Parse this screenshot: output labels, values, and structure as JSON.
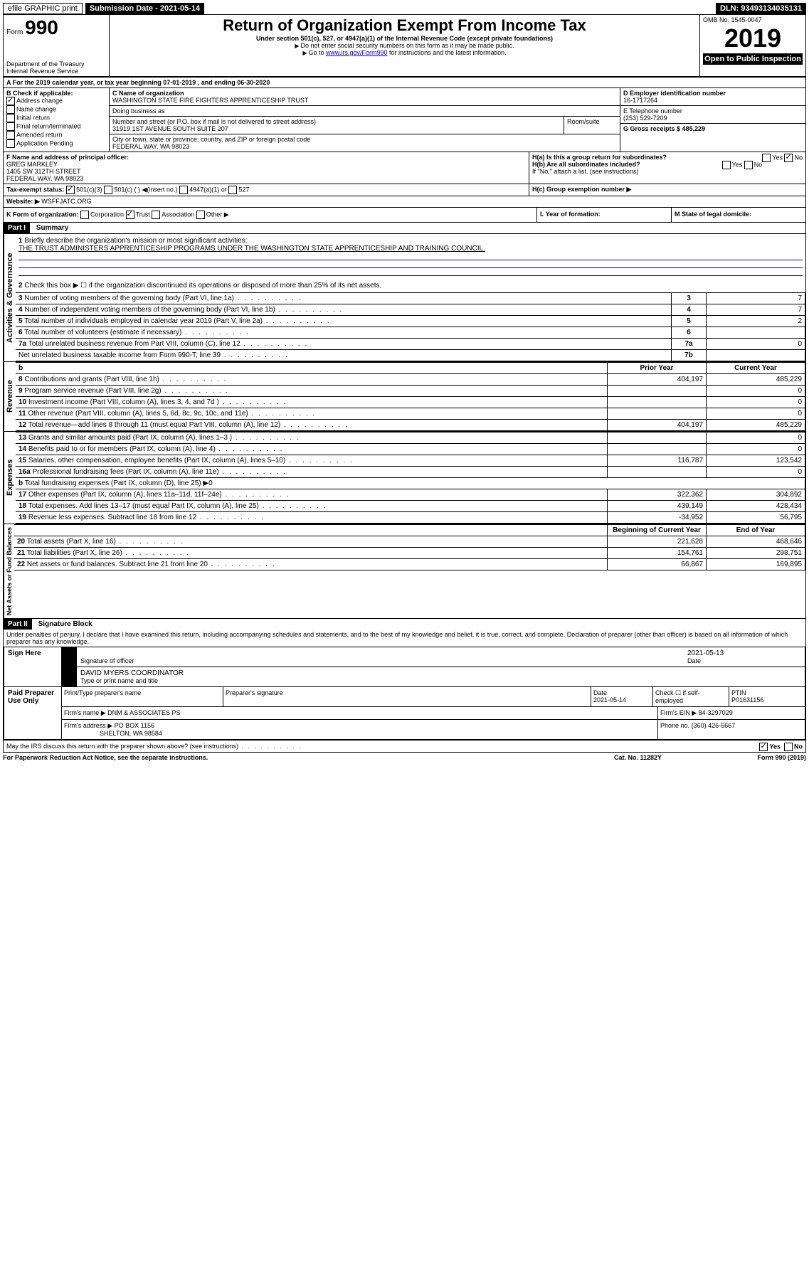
{
  "topbar": {
    "efile": "efile GRAPHIC print",
    "submission_label": "Submission Date - 2021-05-14",
    "dln": "DLN: 93493134035131"
  },
  "header": {
    "form_prefix": "Form",
    "form_number": "990",
    "title": "Return of Organization Exempt From Income Tax",
    "subtitle": "Under section 501(c), 527, or 4947(a)(1) of the Internal Revenue Code (except private foundations)",
    "note1": "Do not enter social security numbers on this form as it may be made public.",
    "note2": "Go to www.irs.gov/Form990 for instructions and the latest information.",
    "link": "www.irs.gov/Form990",
    "omb": "OMB No. 1545-0047",
    "year": "2019",
    "open_public": "Open to Public Inspection",
    "dept": "Department of the Treasury",
    "irs": "Internal Revenue Service"
  },
  "period": {
    "line": "A For the 2019 calendar year, or tax year beginning 07-01-2019    , and ending 06-30-2020"
  },
  "boxB": {
    "label": "B Check if applicable:",
    "items": [
      "Address change",
      "Name change",
      "Initial return",
      "Final return/terminated",
      "Amended return",
      "Application Pending"
    ],
    "checked_index": 0
  },
  "boxC": {
    "label": "C Name of organization",
    "name": "WASHINGTON STATE FIRE FIGHTERS APPRENTICESHIP TRUST",
    "dba_label": "Doing business as",
    "addr_label": "Number and street (or P.O. box if mail is not delivered to street address)",
    "addr": "31919 1ST AVENUE SOUTH SUITE 207",
    "room_label": "Room/suite",
    "city_label": "City or town, state or province, country, and ZIP or foreign postal code",
    "city": "FEDERAL WAY, WA  98023"
  },
  "boxD": {
    "label": "D Employer identification number",
    "value": "16-1717264"
  },
  "boxE": {
    "label": "E Telephone number",
    "value": "(253) 529-7209"
  },
  "boxG": {
    "label": "G Gross receipts $ 485,229"
  },
  "boxF": {
    "label": "F  Name and address of principal officer:",
    "name": "GREG MARKLEY",
    "addr1": "1405 SW 312TH STREET",
    "addr2": "FEDERAL WAY, WA  98023"
  },
  "boxH": {
    "a": "H(a)  Is this a group return for subordinates?",
    "b": "H(b)  Are all subordinates included?",
    "note": "If \"No,\" attach a list. (see instructions)",
    "c": "H(c)  Group exemption number ▶",
    "yes": "Yes",
    "no": "No"
  },
  "boxI": {
    "label": "Tax-exempt status:",
    "opts": [
      "501(c)(3)",
      "501(c) (  ) ◀(insert no.)",
      "4947(a)(1) or",
      "527"
    ]
  },
  "boxJ": {
    "label": "Website: ▶",
    "value": "WSFFJATC.ORG"
  },
  "boxK": {
    "label": "K Form of organization:",
    "opts": [
      "Corporation",
      "Trust",
      "Association",
      "Other ▶"
    ]
  },
  "boxL": {
    "label": "L Year of formation:"
  },
  "boxM": {
    "label": "M State of legal domicile:"
  },
  "part1": {
    "hdr": "Part I",
    "title": "Summary",
    "q1": "Briefly describe the organization's mission or most significant activities:",
    "q1_ans": "THE TRUST ADMINISTERS APPRENTICESHIP PROGRAMS UNDER THE WASHINGTON STATE APPRENTICESHIP AND TRAINING COUNCIL.",
    "q2": "Check this box ▶ ☐  if the organization discontinued its operations or disposed of more than 25% of its net assets.",
    "rows_gov": [
      {
        "n": "3",
        "label": "Number of voting members of the governing body (Part VI, line 1a)",
        "box": "3",
        "val": "7"
      },
      {
        "n": "4",
        "label": "Number of independent voting members of the governing body (Part VI, line 1b)",
        "box": "4",
        "val": "7"
      },
      {
        "n": "5",
        "label": "Total number of individuals employed in calendar year 2019 (Part V, line 2a)",
        "box": "5",
        "val": "2"
      },
      {
        "n": "6",
        "label": "Total number of volunteers (estimate if necessary)",
        "box": "6",
        "val": ""
      },
      {
        "n": "7a",
        "label": "Total unrelated business revenue from Part VIII, column (C), line 12",
        "box": "7a",
        "val": "0"
      },
      {
        "n": "",
        "label": "Net unrelated business taxable income from Form 990-T, line 39",
        "box": "7b",
        "val": ""
      }
    ],
    "col_hdr_prior": "Prior Year",
    "col_hdr_current": "Current Year",
    "rows_rev": [
      {
        "n": "8",
        "label": "Contributions and grants (Part VIII, line 1h)",
        "prior": "404,197",
        "cur": "485,229"
      },
      {
        "n": "9",
        "label": "Program service revenue (Part VIII, line 2g)",
        "prior": "",
        "cur": "0"
      },
      {
        "n": "10",
        "label": "Investment income (Part VIII, column (A), lines 3, 4, and 7d )",
        "prior": "",
        "cur": "0"
      },
      {
        "n": "11",
        "label": "Other revenue (Part VIII, column (A), lines 5, 6d, 8c, 9c, 10c, and 11e)",
        "prior": "",
        "cur": "0"
      },
      {
        "n": "12",
        "label": "Total revenue—add lines 8 through 11 (must equal Part VIII, column (A), line 12)",
        "prior": "404,197",
        "cur": "485,229"
      }
    ],
    "rows_exp": [
      {
        "n": "13",
        "label": "Grants and similar amounts paid (Part IX, column (A), lines 1–3 )",
        "prior": "",
        "cur": "0"
      },
      {
        "n": "14",
        "label": "Benefits paid to or for members (Part IX, column (A), line 4)",
        "prior": "",
        "cur": "0"
      },
      {
        "n": "15",
        "label": "Salaries, other compensation, employee benefits (Part IX, column (A), lines 5–10)",
        "prior": "116,787",
        "cur": "123,542"
      },
      {
        "n": "16a",
        "label": "Professional fundraising fees (Part IX, column (A), line 11e)",
        "prior": "",
        "cur": "0"
      },
      {
        "n": "b",
        "label": "Total fundraising expenses (Part IX, column (D), line 25) ▶0",
        "prior": "—",
        "cur": "—"
      },
      {
        "n": "17",
        "label": "Other expenses (Part IX, column (A), lines 11a–11d, 11f–24e)",
        "prior": "322,362",
        "cur": "304,892"
      },
      {
        "n": "18",
        "label": "Total expenses. Add lines 13–17 (must equal Part IX, column (A), line 25)",
        "prior": "439,149",
        "cur": "428,434"
      },
      {
        "n": "19",
        "label": "Revenue less expenses. Subtract line 18 from line 12",
        "prior": "-34,952",
        "cur": "56,795"
      }
    ],
    "col_hdr_begin": "Beginning of Current Year",
    "col_hdr_end": "End of Year",
    "rows_net": [
      {
        "n": "20",
        "label": "Total assets (Part X, line 16)",
        "prior": "221,628",
        "cur": "468,646"
      },
      {
        "n": "21",
        "label": "Total liabilities (Part X, line 26)",
        "prior": "154,761",
        "cur": "298,751"
      },
      {
        "n": "22",
        "label": "Net assets or fund balances. Subtract line 21 from line 20",
        "prior": "66,867",
        "cur": "169,895"
      }
    ],
    "side_gov": "Activities & Governance",
    "side_rev": "Revenue",
    "side_exp": "Expenses",
    "side_net": "Net Assets or Fund Balances"
  },
  "part2": {
    "hdr": "Part II",
    "title": "Signature Block",
    "perjury": "Under penalties of perjury, I declare that I have examined this return, including accompanying schedules and statements, and to the best of my knowledge and belief, it is true, correct, and complete. Declaration of preparer (other than officer) is based on all information of which preparer has any knowledge.",
    "sign_here": "Sign Here",
    "sig_officer": "Signature of officer",
    "sig_date": "2021-05-13",
    "sig_date_label": "Date",
    "officer_name": "DAVID MYERS COORDINATOR",
    "officer_name_label": "Type or print name and title",
    "paid": "Paid Preparer Use Only",
    "prep_name_label": "Print/Type preparer's name",
    "prep_sig_label": "Preparer's signature",
    "prep_date_label": "Date",
    "prep_date": "2021-05-14",
    "prep_check": "Check ☐ if self-employed",
    "ptin_label": "PTIN",
    "ptin": "P01631156",
    "firm_name_label": "Firm's name    ▶",
    "firm_name": "DNM & ASSOCIATES PS",
    "firm_ein_label": "Firm's EIN ▶",
    "firm_ein": "84-3297029",
    "firm_addr_label": "Firm's address ▶",
    "firm_addr1": "PO BOX 1156",
    "firm_addr2": "SHELTON, WA  98584",
    "phone_label": "Phone no.",
    "phone": "(360) 426-5667",
    "discuss": "May the IRS discuss this return with the preparer shown above? (see instructions)",
    "yes": "Yes",
    "no": "No"
  },
  "footer": {
    "pra": "For Paperwork Reduction Act Notice, see the separate instructions.",
    "cat": "Cat. No. 11282Y",
    "form": "Form 990 (2019)"
  }
}
